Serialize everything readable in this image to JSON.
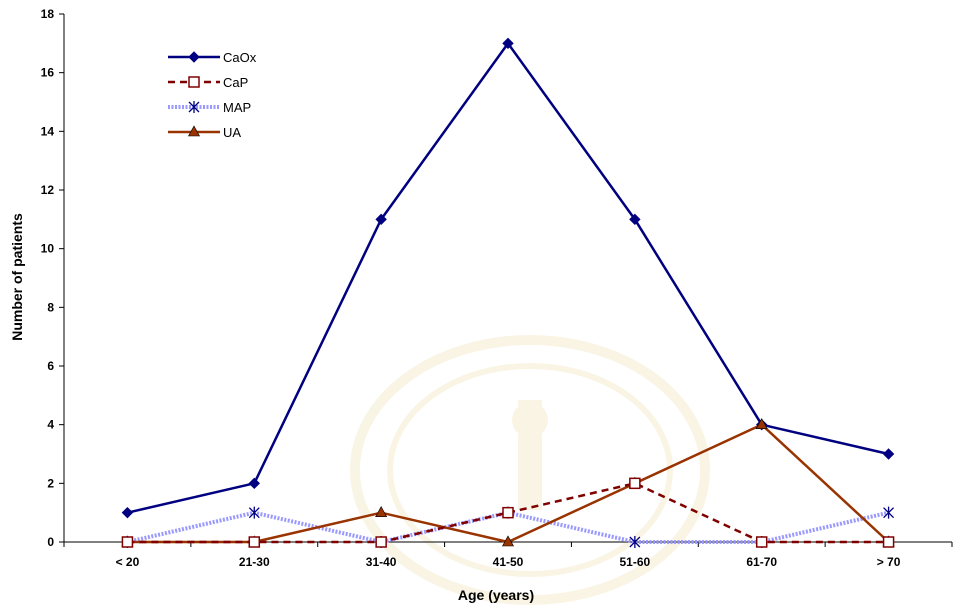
{
  "chart_data": {
    "type": "line",
    "categories": [
      "< 20",
      "21-30",
      "31-40",
      "41-50",
      "51-60",
      "61-70",
      "> 70"
    ],
    "series": [
      {
        "name": "CaOx",
        "values": [
          1,
          2,
          11,
          17,
          11,
          4,
          3
        ],
        "color": "#000080",
        "marker": "diamond",
        "dash": "solid"
      },
      {
        "name": "CaP",
        "values": [
          0,
          0,
          0,
          1,
          2,
          0,
          0
        ],
        "color": "#800000",
        "marker": "square-open",
        "dash": "dashed"
      },
      {
        "name": "MAP",
        "values": [
          0,
          1,
          0,
          1,
          0,
          0,
          1
        ],
        "color": "#9999FF",
        "marker": "asterisk",
        "dash": "dotted"
      },
      {
        "name": "UA",
        "values": [
          0,
          0,
          1,
          0,
          2,
          4,
          0
        ],
        "color": "#993300",
        "marker": "triangle",
        "dash": "solid"
      }
    ],
    "xlabel": "Age (years)",
    "ylabel": "Number of patients",
    "ylim": [
      0,
      18
    ],
    "yticks": [
      0,
      2,
      4,
      6,
      8,
      10,
      12,
      14,
      16,
      18
    ],
    "grid": false,
    "legend_position": "top-left"
  }
}
